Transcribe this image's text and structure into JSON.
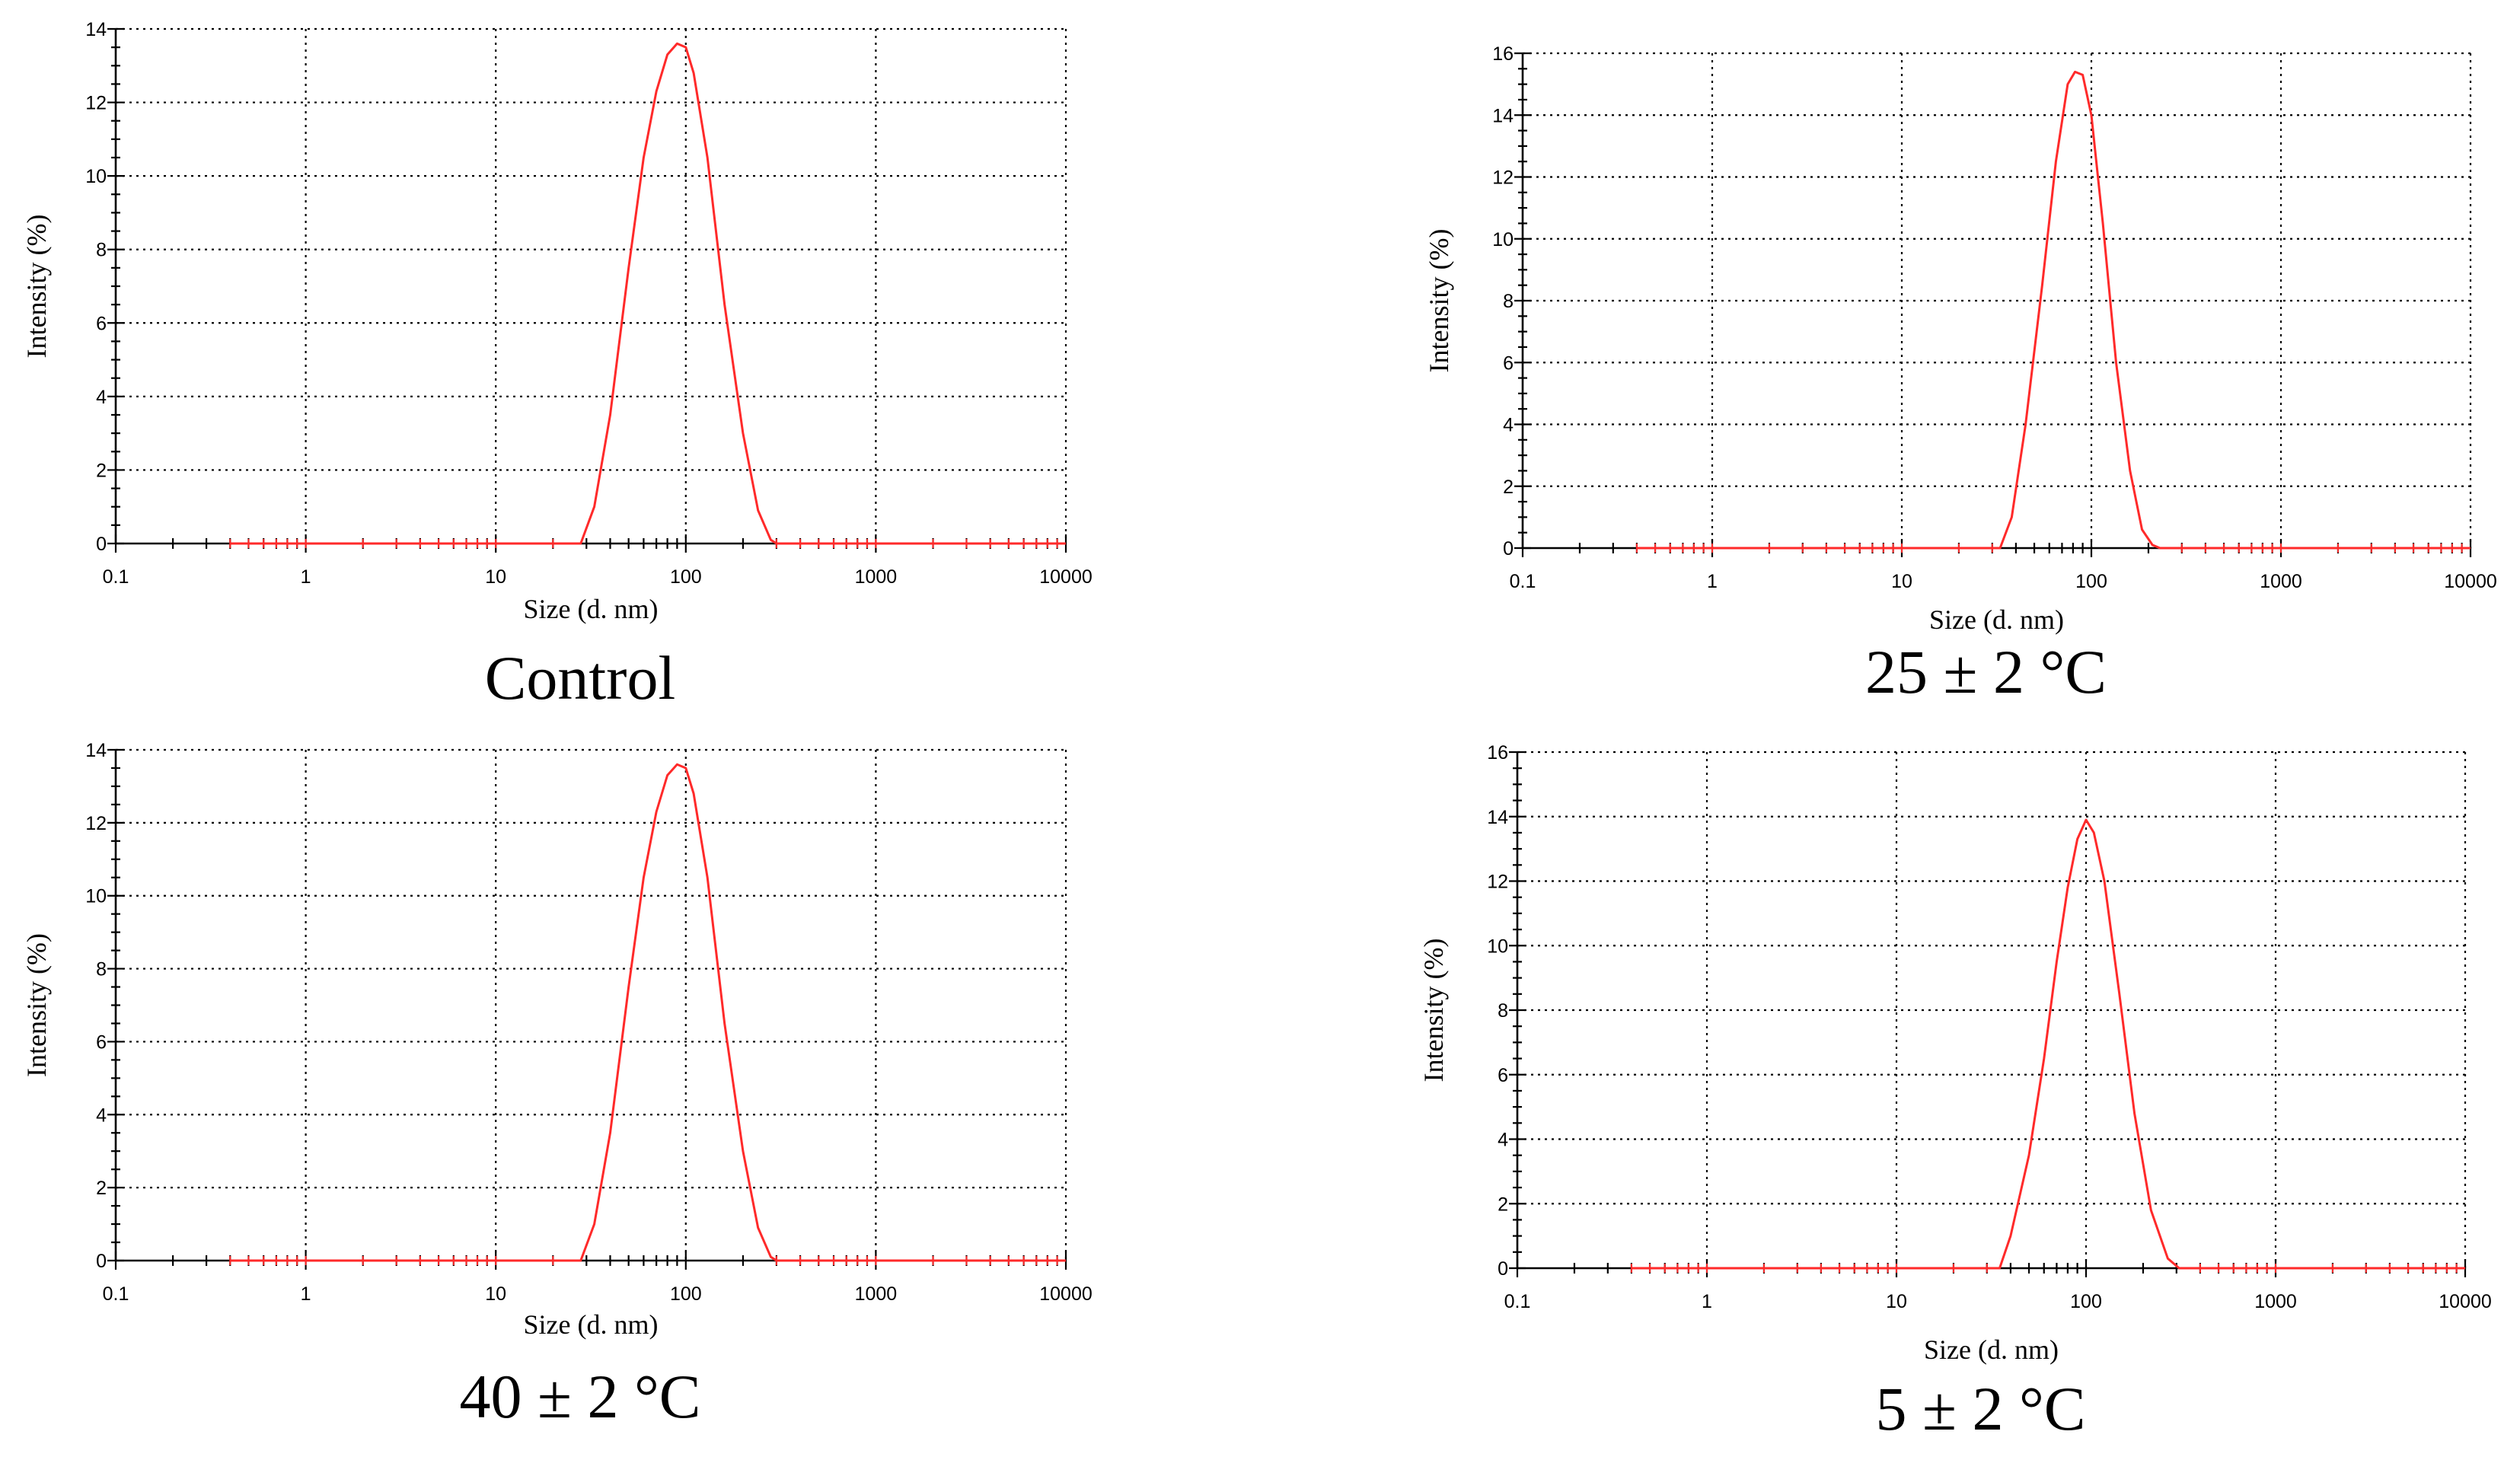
{
  "chart_data": [
    {
      "type": "line",
      "caption": "Control",
      "xlabel": "Size (d. nm)",
      "ylabel": "Intensity (%)",
      "xscale": "log",
      "xlim": [
        0.1,
        10000
      ],
      "ylim": [
        0,
        14
      ],
      "xticks": [
        "0.1",
        "1",
        "10",
        "100",
        "1000",
        "10000"
      ],
      "yticks": [
        "0",
        "2",
        "4",
        "6",
        "8",
        "10",
        "12",
        "14"
      ],
      "grid": true,
      "color": "#ff2a2a",
      "series": [
        {
          "x": [
            0.4,
            28,
            33,
            40,
            50,
            60,
            70,
            80,
            90,
            100,
            110,
            130,
            160,
            200,
            240,
            280,
            300,
            10000
          ],
          "y": [
            0,
            0,
            1.0,
            3.5,
            7.5,
            10.5,
            12.3,
            13.3,
            13.6,
            13.5,
            12.8,
            10.5,
            6.5,
            3.0,
            0.9,
            0.1,
            0,
            0
          ]
        }
      ]
    },
    {
      "type": "line",
      "caption": "25 ± 2 °C",
      "xlabel": "Size (d. nm)",
      "ylabel": "Intensity (%)",
      "xscale": "log",
      "xlim": [
        0.1,
        10000
      ],
      "ylim": [
        0,
        16
      ],
      "xticks": [
        "0.1",
        "1",
        "10",
        "100",
        "1000",
        "10000"
      ],
      "yticks": [
        "0",
        "2",
        "4",
        "6",
        "8",
        "10",
        "12",
        "14",
        "16"
      ],
      "grid": true,
      "color": "#ff2a2a",
      "series": [
        {
          "x": [
            0.4,
            33,
            38,
            45,
            55,
            65,
            75,
            82,
            90,
            100,
            115,
            135,
            160,
            185,
            210,
            230,
            10000
          ],
          "y": [
            0,
            0,
            1.0,
            4.0,
            8.5,
            12.5,
            15.0,
            15.4,
            15.3,
            14.0,
            10.5,
            6.0,
            2.5,
            0.6,
            0.1,
            0,
            0
          ]
        }
      ]
    },
    {
      "type": "line",
      "caption": "40 ± 2 °C",
      "xlabel": "Size (d. nm)",
      "ylabel": "Intensity (%)",
      "xscale": "log",
      "xlim": [
        0.1,
        10000
      ],
      "ylim": [
        0,
        14
      ],
      "xticks": [
        "0.1",
        "1",
        "10",
        "100",
        "1000",
        "10000"
      ],
      "yticks": [
        "0",
        "2",
        "4",
        "6",
        "8",
        "10",
        "12",
        "14"
      ],
      "grid": true,
      "color": "#ff2a2a",
      "series": [
        {
          "x": [
            0.4,
            28,
            33,
            40,
            50,
            60,
            70,
            80,
            90,
            100,
            110,
            130,
            160,
            200,
            240,
            280,
            300,
            10000
          ],
          "y": [
            0,
            0,
            1.0,
            3.5,
            7.5,
            10.5,
            12.3,
            13.3,
            13.6,
            13.5,
            12.8,
            10.5,
            6.5,
            3.0,
            0.9,
            0.1,
            0,
            0
          ]
        }
      ]
    },
    {
      "type": "line",
      "caption": "5 ± 2 °C",
      "xlabel": "Size (d. nm)",
      "ylabel": "Intensity (%)",
      "xscale": "log",
      "xlim": [
        0.1,
        10000
      ],
      "ylim": [
        0,
        16
      ],
      "xticks": [
        "0.1",
        "1",
        "10",
        "100",
        "1000",
        "10000"
      ],
      "yticks": [
        "0",
        "2",
        "4",
        "6",
        "8",
        "10",
        "12",
        "14",
        "16"
      ],
      "grid": true,
      "color": "#ff2a2a",
      "series": [
        {
          "x": [
            0.4,
            35,
            40,
            50,
            60,
            70,
            80,
            90,
            100,
            110,
            125,
            150,
            180,
            220,
            270,
            310,
            10000
          ],
          "y": [
            0,
            0,
            1.0,
            3.5,
            6.5,
            9.5,
            11.8,
            13.3,
            13.9,
            13.5,
            12.0,
            8.5,
            4.8,
            1.8,
            0.3,
            0,
            0
          ]
        }
      ]
    }
  ]
}
